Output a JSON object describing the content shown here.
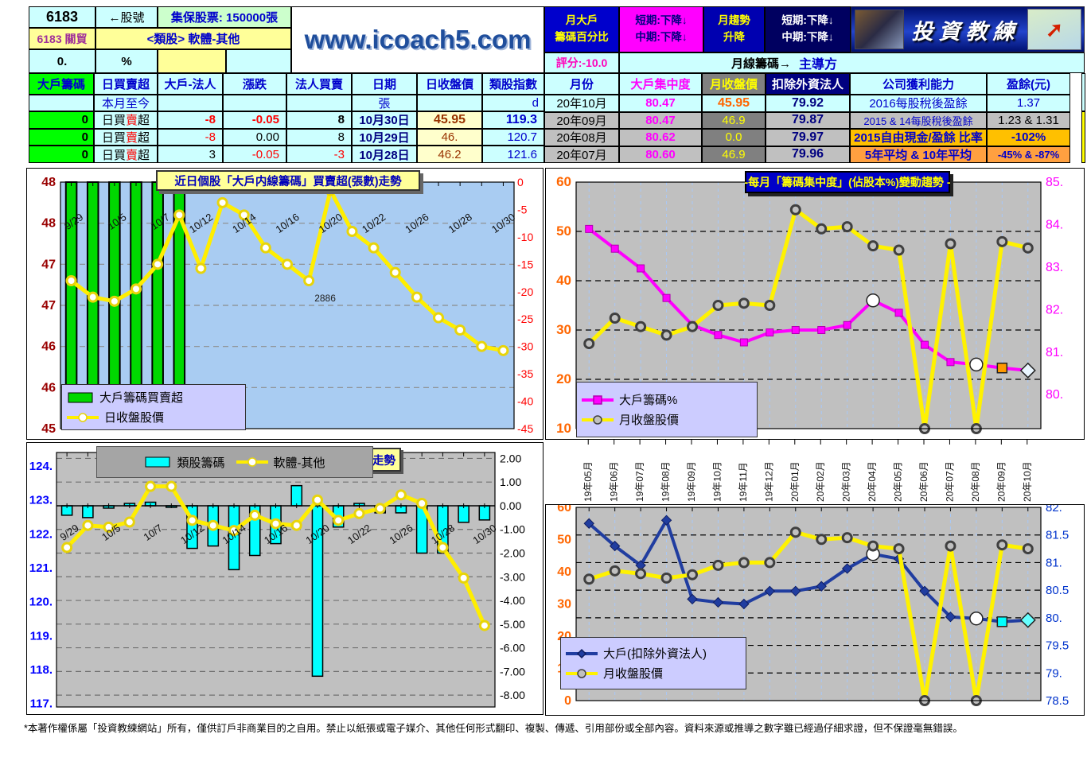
{
  "header": {
    "stock_id": "6183",
    "stock_arrow": "←股號",
    "custody": "集保股票: 150000張",
    "stock_name": "6183 關貿",
    "sector": "<類股> 軟體-其他",
    "pct_zero": "0.",
    "pct_sign": "%",
    "website": "www.icoach5.com",
    "block_month_holder": [
      "月大戶",
      "籌碼百分比"
    ],
    "block_trend1": [
      "短期:下降↓",
      "中期:下降↓"
    ],
    "block_month_trend": [
      "月趨勢",
      "升降"
    ],
    "block_trend2": [
      "短期:下降↓",
      "中期:下降↓"
    ],
    "logo_brand": "投資教練",
    "logo_arrow": "➚",
    "score": "評分:-10.0",
    "monthly_chips_label": "月線籌碼→",
    "dominant_label": "主導方"
  },
  "table": {
    "left": {
      "headers": [
        "大戶籌碼",
        "日買賣超",
        "大戶-法人",
        "漲跌",
        "法人買賣",
        "日期",
        "日收盤價",
        "類股指數"
      ],
      "subrow": [
        "",
        "本月至今",
        "",
        "",
        "",
        "張",
        "",
        "d"
      ],
      "type_parts": [
        "日買",
        "賣",
        "超"
      ],
      "rows": [
        {
          "chip": "0",
          "type": "日買賣超",
          "net": "-8",
          "chg": "-0.05",
          "inst": "8",
          "date": "10月30日",
          "close": "45.95",
          "index": "119.3"
        },
        {
          "chip": "0",
          "type": "日買賣超",
          "net": "-8",
          "chg": "0.00",
          "inst": "8",
          "date": "10月29日",
          "close": "46.",
          "index": "120.7"
        },
        {
          "chip": "0",
          "type": "日買賣超",
          "net": "3",
          "chg": "-0.05",
          "inst": "-3",
          "date": "10月28日",
          "close": "46.2",
          "index": "121.6"
        }
      ]
    },
    "right": {
      "headers": [
        "月份",
        "大戶集中度",
        "月收盤價",
        "扣除外資法人",
        "公司獲利能力",
        "盈餘(元)"
      ],
      "rows": [
        {
          "month": "20年10月",
          "conc": "80.47",
          "close": "45.95",
          "exf": "79.92",
          "profit": "2016每股稅後盈餘",
          "eps": "1.37"
        },
        {
          "month": "20年09月",
          "conc": "80.47",
          "close": "46.9",
          "exf": "79.87",
          "profit": "2015 & 14每股稅後盈餘",
          "eps": "1.23 & 1.31"
        },
        {
          "month": "20年08月",
          "conc": "80.62",
          "close": "0.0",
          "exf": "79.97",
          "profit": "2015自由現金/盈餘 比率",
          "eps": "-102%"
        },
        {
          "month": "20年07月",
          "conc": "80.60",
          "close": "46.9",
          "exf": "79.96",
          "profit": "5年平均 & 10年平均",
          "eps": "-45% & -87%"
        }
      ]
    }
  },
  "chart_data": [
    {
      "id": "tl",
      "type": "bar+line",
      "title": "近日個股「大戶内線籌碼」買賣超(張數)走勢",
      "categories": [
        "9/29",
        "9/30",
        "10/5",
        "10/6",
        "10/7",
        "10/8",
        "10/12",
        "10/13",
        "10/14",
        "10/15",
        "10/16",
        "10/19",
        "10/20",
        "10/21",
        "10/22",
        "10/23",
        "10/26",
        "10/27",
        "10/28",
        "10/29",
        "10/30"
      ],
      "x_labels_shown": [
        "9/29",
        "10/5",
        "10/7",
        "10/12",
        "10/14",
        "10/16",
        "10/20",
        "10/22",
        "10/26",
        "10/28",
        "10/30"
      ],
      "plot_bg": "#A9CCF2",
      "left_axis": {
        "labels": [
          "48",
          "48",
          "47",
          "47",
          "46",
          "46",
          "45"
        ],
        "values": [
          48,
          47.5,
          47,
          46.5,
          46,
          45.5,
          45
        ],
        "range": [
          45,
          48
        ],
        "color": "#990000"
      },
      "right_axis": {
        "labels": [
          "0",
          "-5",
          "-10",
          "-15",
          "-20",
          "-25",
          "-30",
          "-35",
          "-40",
          "-45"
        ],
        "values": [
          0,
          -5,
          -10,
          -15,
          -20,
          -25,
          -30,
          -35,
          -40,
          -45
        ],
        "range": [
          -45,
          0
        ],
        "color": "#FF0000"
      },
      "hgrid": {
        "axis": "left",
        "values": [
          47.5,
          47,
          46.5,
          46,
          45.5
        ]
      },
      "bars": {
        "name": "大戶籌碼買賣超",
        "axis": "right",
        "color": "#00D800",
        "note": "six full-height bars clipped by axis scale",
        "values": [
          -999,
          -999,
          -999,
          -999,
          -999,
          -999,
          null,
          null,
          null,
          null,
          null,
          null,
          null,
          null,
          null,
          null,
          null,
          null,
          null,
          null,
          null
        ]
      },
      "series": [
        {
          "name": "日收盤股價",
          "axis": "left",
          "color": "#FFEE00",
          "width": 5,
          "marker": "circle",
          "marker_fill": "#FFFFFF",
          "marker_stroke": "#E8D40A",
          "values": [
            46.8,
            46.6,
            46.55,
            46.7,
            47.0,
            47.6,
            46.95,
            47.75,
            47.6,
            47.2,
            47.0,
            46.8,
            47.9,
            47.4,
            47.2,
            46.9,
            46.6,
            46.35,
            46.2,
            46.0,
            45.95
          ]
        }
      ],
      "annotation": "2886",
      "legend": [
        "大戶籌碼買賣超",
        "日收盤股價"
      ]
    },
    {
      "id": "tr",
      "type": "line",
      "title": "-每月「籌碼集中度」(佔股本%)變動趨勢 -",
      "categories": [
        "19年05月",
        "19年06月",
        "19年07月",
        "19年08月",
        "19年09月",
        "19年10月",
        "19年11月",
        "19年12月",
        "20年01月",
        "20年02月",
        "20年03月",
        "20年04月",
        "20年05月",
        "20年06月",
        "20年07月",
        "20年08月",
        "20年09月",
        "20年10月"
      ],
      "plot_bg": "#C0C0C0",
      "left_axis": {
        "labels": [
          "60",
          "50",
          "40",
          "30",
          "20",
          "10"
        ],
        "values": [
          60,
          50,
          40,
          30,
          20,
          10
        ],
        "range": [
          10,
          60
        ],
        "color": "#FF6600"
      },
      "right_axis": {
        "labels": [
          "85.",
          "84.",
          "83.",
          "82.",
          "81.",
          "80."
        ],
        "values": [
          85,
          84,
          83,
          82,
          81,
          80
        ],
        "range": [
          79.2,
          85
        ],
        "color": "#FF00FF"
      },
      "hgrid": {
        "axis": "left",
        "values": [
          50,
          40,
          30,
          20
        ]
      },
      "vgrid": true,
      "series": [
        {
          "name": "大戶籌碼%",
          "axis": "left",
          "color": "#FF00FF",
          "width": 4,
          "marker": "square",
          "marker_fill": "#FF00FF",
          "marker_stroke": "#B000B0",
          "values": [
            50.5,
            46.5,
            42.5,
            36.5,
            31.0,
            29.0,
            27.5,
            29.5,
            30.0,
            30.0,
            31.0,
            36.0,
            33.5,
            27.0,
            23.5,
            23.0,
            22.3,
            21.8
          ],
          "special_markers": [
            {
              "i": 11,
              "shape": "circle",
              "r": 8,
              "fill": "#FFFFFF"
            },
            {
              "i": 15,
              "shape": "circle",
              "r": 8,
              "fill": "#FFFFFF"
            },
            {
              "i": 16,
              "shape": "square",
              "r": 6,
              "fill": "#FF9900"
            },
            {
              "i": 17,
              "shape": "diamond",
              "r": 9,
              "fill": "#EAF6FF"
            }
          ]
        },
        {
          "name": "月收盤股價",
          "axis": "right",
          "color": "#FFF200",
          "width": 5,
          "marker": "circle",
          "marker_fill": "#C0C0C0",
          "marker_stroke": "#404040",
          "values": [
            81.2,
            81.8,
            81.6,
            81.4,
            81.6,
            82.1,
            82.15,
            82.1,
            84.35,
            83.9,
            83.95,
            83.5,
            83.4,
            79.2,
            83.55,
            79.2,
            83.6,
            83.45
          ]
        }
      ],
      "legend": [
        "大戶籌碼%",
        "月收盤股價"
      ]
    },
    {
      "id": "bl",
      "type": "bar+line",
      "title_partial": "走勢",
      "categories": [
        "9/29",
        "9/30",
        "10/5",
        "10/6",
        "10/7",
        "10/8",
        "10/12",
        "10/13",
        "10/14",
        "10/15",
        "10/16",
        "10/19",
        "10/20",
        "10/21",
        "10/22",
        "10/23",
        "10/26",
        "10/27",
        "10/28",
        "10/29",
        "10/30"
      ],
      "x_labels_shown": [
        "9/29",
        "10/5",
        "10/7",
        "10/12",
        "10/14",
        "10/16",
        "10/20",
        "10/22",
        "10/26",
        "10/28",
        "10/30"
      ],
      "plot_bg": "#C0C0C0",
      "left_axis": {
        "labels": [
          "124.",
          "123.",
          "122.",
          "121.",
          "120.",
          "119.",
          "118.",
          "117."
        ],
        "values": [
          124,
          123,
          122,
          121,
          120,
          119,
          118,
          117
        ],
        "range": [
          116.9,
          124.4
        ],
        "color": "#0000FF"
      },
      "right_axis": {
        "labels": [
          "2.00",
          "1.00",
          "0.00",
          "-1.00",
          "-2.00",
          "-3.00",
          "-4.00",
          "-5.00",
          "-6.00",
          "-7.00",
          "-8.00"
        ],
        "values": [
          2,
          1,
          0,
          -1,
          -2,
          -3,
          -4,
          -5,
          -6,
          -7,
          -8
        ],
        "range": [
          -8.5,
          2.25
        ],
        "color": "#000000"
      },
      "hgrid": {
        "axis": "right",
        "values": [
          2,
          1,
          -1,
          -2,
          -3,
          -4,
          -5,
          -6,
          -7,
          -8
        ]
      },
      "bars": {
        "name": "類股籌碼",
        "axis": "right",
        "color": "#00FFFF",
        "values": [
          -0.4,
          -0.5,
          -0.1,
          0.1,
          0.15,
          0,
          -1.8,
          -1.7,
          -2.7,
          -2.1,
          -1.6,
          0.85,
          -7.2,
          -0.9,
          0.1,
          -0.3,
          -0.3,
          -2.0,
          -2.0,
          -0.7,
          -0.6
        ]
      },
      "series": [
        {
          "name": "軟體-其他",
          "axis": "left",
          "color": "#FFEE00",
          "width": 5,
          "marker": "circle",
          "marker_fill": "#FFFFFF",
          "marker_stroke": "#E8D40A",
          "values": [
            121.6,
            122.25,
            122.2,
            122.35,
            123.4,
            123.4,
            122.4,
            122.25,
            122.1,
            122.55,
            122.3,
            122.25,
            123.0,
            122.4,
            122.6,
            122.75,
            123.15,
            122.9,
            121.6,
            120.7,
            119.3
          ]
        }
      ],
      "legend": [
        "類股籌碼",
        "軟體-其他"
      ]
    },
    {
      "id": "br",
      "type": "line",
      "categories": [
        "19年05月",
        "19年06月",
        "19年07月",
        "19年08月",
        "19年09月",
        "19年10月",
        "19年11月",
        "19年12月",
        "20年01月",
        "20年02月",
        "20年03月",
        "20年04月",
        "20年05月",
        "20年06月",
        "20年07月",
        "20年08月",
        "20年09月",
        "20年10月"
      ],
      "plot_bg": "#C0C0C0",
      "left_axis": {
        "labels": [
          "60",
          "50",
          "40",
          "30",
          "20",
          "10",
          "0"
        ],
        "values": [
          60,
          50,
          40,
          30,
          20,
          10,
          0
        ],
        "range": [
          0,
          60
        ],
        "color": "#FF6600"
      },
      "right_axis": {
        "labels": [
          "82.",
          "81.5",
          "81.",
          "80.5",
          "80.",
          "79.5",
          "79.",
          "78.5"
        ],
        "values": [
          82,
          81.5,
          81,
          80.5,
          80,
          79.5,
          79,
          78.5
        ],
        "range": [
          78.5,
          82
        ],
        "color": "#0033CC"
      },
      "hgrid": {
        "axis": "right",
        "values": [
          81.5,
          81,
          80.5,
          80,
          79.5,
          79
        ]
      },
      "vgrid": true,
      "series": [
        {
          "name": "大戶(扣除外資法人)",
          "axis": "left",
          "color": "#203DA0",
          "width": 4,
          "marker": "diamond",
          "marker_fill": "#203DA0",
          "marker_stroke": "#101E60",
          "values": [
            55,
            48,
            42,
            56,
            31.5,
            30.5,
            30,
            34,
            34,
            35.5,
            41,
            45.5,
            44,
            34,
            26,
            25.5,
            24.5,
            25
          ],
          "special_markers": [
            {
              "i": 11,
              "shape": "circle",
              "r": 8,
              "fill": "#FFFFFF"
            },
            {
              "i": 15,
              "shape": "circle",
              "r": 8,
              "fill": "#FFFFFF"
            },
            {
              "i": 16,
              "shape": "square",
              "r": 6,
              "fill": "#00FFFF"
            },
            {
              "i": 17,
              "shape": "diamond",
              "r": 9,
              "fill": "#66FFFF"
            }
          ]
        },
        {
          "name": "月收盤股價",
          "axis": "right",
          "color": "#FFF200",
          "width": 5,
          "marker": "circle",
          "marker_fill": "#C0C0C0",
          "marker_stroke": "#404040",
          "values": [
            80.7,
            80.85,
            80.8,
            80.72,
            80.78,
            80.95,
            81.0,
            81.0,
            81.55,
            81.42,
            81.45,
            81.3,
            81.25,
            78.5,
            81.3,
            78.5,
            81.32,
            81.25
          ]
        }
      ],
      "legend": [
        "大戶(扣除外資法人)",
        "月收盤股價"
      ]
    }
  ],
  "footer": "*本著作權係屬「投資教練網站」所有，僅供訂戶非商業目的之自用。禁止以紙張或電子媒介、其他任何形式翻印、複製、傳遞、引用部份或全部內容。資料來源或推導之數字雖已經過仔細求證，但不保證毫無錯誤。"
}
